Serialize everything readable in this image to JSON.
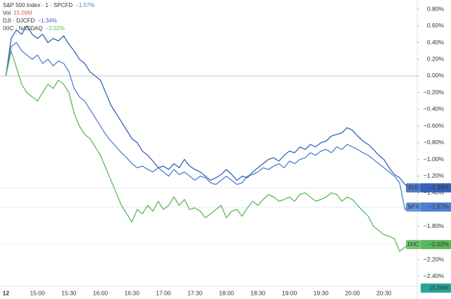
{
  "chart_data": {
    "type": "line",
    "x": [
      "12",
      null,
      null,
      null,
      null,
      null,
      "15:00",
      null,
      null,
      null,
      null,
      null,
      "15:30",
      null,
      null,
      null,
      null,
      null,
      "16:00",
      null,
      null,
      null,
      null,
      null,
      "16:30",
      null,
      null,
      null,
      null,
      null,
      "17:00",
      null,
      null,
      null,
      null,
      null,
      "17:30",
      null,
      null,
      null,
      null,
      null,
      "18:00",
      null,
      null,
      null,
      null,
      null,
      "18:30",
      null,
      null,
      null,
      null,
      null,
      "19:00",
      null,
      null,
      null,
      null,
      null,
      "19:30",
      null,
      null,
      null,
      null,
      null,
      "20:00",
      null,
      null,
      null,
      null,
      null,
      "20:30",
      null,
      null,
      null,
      null,
      null
    ],
    "series": [
      {
        "name": "SPX",
        "legend": "S&P 500 Index · 1 · SPCFD",
        "last_label": "−1.57%",
        "color": "#4f7fd0",
        "values": [
          0.0,
          0.35,
          0.4,
          0.3,
          0.25,
          0.2,
          0.25,
          0.15,
          0.2,
          0.12,
          0.18,
          0.15,
          0.05,
          -0.15,
          -0.25,
          -0.3,
          -0.4,
          -0.5,
          -0.6,
          -0.7,
          -0.78,
          -0.85,
          -0.92,
          -0.98,
          -1.05,
          -1.1,
          -1.08,
          -1.12,
          -1.15,
          -1.1,
          -1.15,
          -1.2,
          -1.12,
          -1.18,
          -1.15,
          -1.2,
          -1.25,
          -1.2,
          -1.22,
          -1.28,
          -1.3,
          -1.25,
          -1.2,
          -1.25,
          -1.3,
          -1.28,
          -1.2,
          -1.18,
          -1.15,
          -1.1,
          -1.12,
          -1.08,
          -1.05,
          -1.1,
          -1.02,
          -1.05,
          -1.0,
          -0.98,
          -0.92,
          -0.95,
          -0.9,
          -0.88,
          -0.92,
          -0.85,
          -0.88,
          -0.82,
          -0.85,
          -0.88,
          -0.92,
          -0.95,
          -1.0,
          -1.05,
          -1.1,
          -1.15,
          -1.2,
          -1.28,
          -1.6,
          -1.57
        ]
      },
      {
        "name": "DJI",
        "legend": "DJI · DJCFD",
        "last_label": "−1.34%",
        "color": "#3562b8",
        "values": [
          0.0,
          0.45,
          0.55,
          0.5,
          0.6,
          0.5,
          0.45,
          0.5,
          0.4,
          0.45,
          0.42,
          0.48,
          0.38,
          0.3,
          0.2,
          0.15,
          0.05,
          0.0,
          -0.05,
          -0.2,
          -0.35,
          -0.45,
          -0.55,
          -0.65,
          -0.75,
          -0.8,
          -0.9,
          -0.95,
          -1.02,
          -1.1,
          -1.08,
          -1.12,
          -1.05,
          -1.1,
          -1.0,
          -1.08,
          -1.12,
          -1.15,
          -1.2,
          -1.25,
          -1.22,
          -1.18,
          -1.12,
          -1.18,
          -1.25,
          -1.2,
          -1.22,
          -1.15,
          -1.1,
          -1.05,
          -1.0,
          -0.98,
          -1.02,
          -0.95,
          -0.9,
          -0.92,
          -0.85,
          -0.88,
          -0.82,
          -0.85,
          -0.8,
          -0.78,
          -0.72,
          -0.7,
          -0.68,
          -0.62,
          -0.65,
          -0.72,
          -0.78,
          -0.82,
          -0.88,
          -0.95,
          -1.0,
          -1.1,
          -1.18,
          -1.22,
          -1.3,
          -1.34
        ]
      },
      {
        "name": "IXIC",
        "legend": "IXIC · NASDAQ",
        "last_label": "−2.02%",
        "color": "#5cb85c",
        "values": [
          0.0,
          0.3,
          0.1,
          -0.1,
          -0.2,
          -0.25,
          -0.3,
          -0.2,
          -0.1,
          -0.15,
          -0.05,
          -0.1,
          -0.2,
          -0.45,
          -0.6,
          -0.7,
          -0.75,
          -0.85,
          -0.95,
          -1.1,
          -1.25,
          -1.4,
          -1.55,
          -1.65,
          -1.75,
          -1.6,
          -1.65,
          -1.55,
          -1.62,
          -1.5,
          -1.6,
          -1.55,
          -1.45,
          -1.55,
          -1.48,
          -1.6,
          -1.58,
          -1.62,
          -1.7,
          -1.65,
          -1.6,
          -1.55,
          -1.7,
          -1.62,
          -1.6,
          -1.68,
          -1.58,
          -1.5,
          -1.55,
          -1.48,
          -1.42,
          -1.45,
          -1.5,
          -1.48,
          -1.45,
          -1.5,
          -1.42,
          -1.4,
          -1.45,
          -1.5,
          -1.48,
          -1.45,
          -1.4,
          -1.42,
          -1.5,
          -1.45,
          -1.48,
          -1.55,
          -1.62,
          -1.68,
          -1.8,
          -1.85,
          -1.9,
          -1.92,
          -1.95,
          -2.1,
          -2.05,
          -2.02
        ]
      }
    ],
    "volume": {
      "label": "Vol",
      "value_label": "15.09M",
      "color": "#e5603b",
      "badge_color": "#26a69a"
    },
    "ylim": [
      -2.52,
      0.91
    ],
    "yticks": [
      {
        "value": 0.8,
        "label": "0.80%"
      },
      {
        "value": 0.6,
        "label": "0.60%"
      },
      {
        "value": 0.4,
        "label": "0.40%"
      },
      {
        "value": 0.2,
        "label": "0.20%"
      },
      {
        "value": 0,
        "label": "0.00%"
      },
      {
        "value": -0.2,
        "label": "−0.20%"
      },
      {
        "value": -0.4,
        "label": "−0.40%"
      },
      {
        "value": -0.6,
        "label": "−0.60%"
      },
      {
        "value": -0.8,
        "label": "−0.80%"
      },
      {
        "value": -1.0,
        "label": "−1.00%"
      },
      {
        "value": -1.2,
        "label": "−1.20%"
      },
      {
        "value": -1.4,
        "label": "−1.40%"
      },
      {
        "value": -1.8,
        "label": "−1.80%"
      },
      {
        "value": -2.2,
        "label": "−2.20%"
      },
      {
        "value": -2.4,
        "label": "−2.40%"
      }
    ],
    "grid": false
  }
}
